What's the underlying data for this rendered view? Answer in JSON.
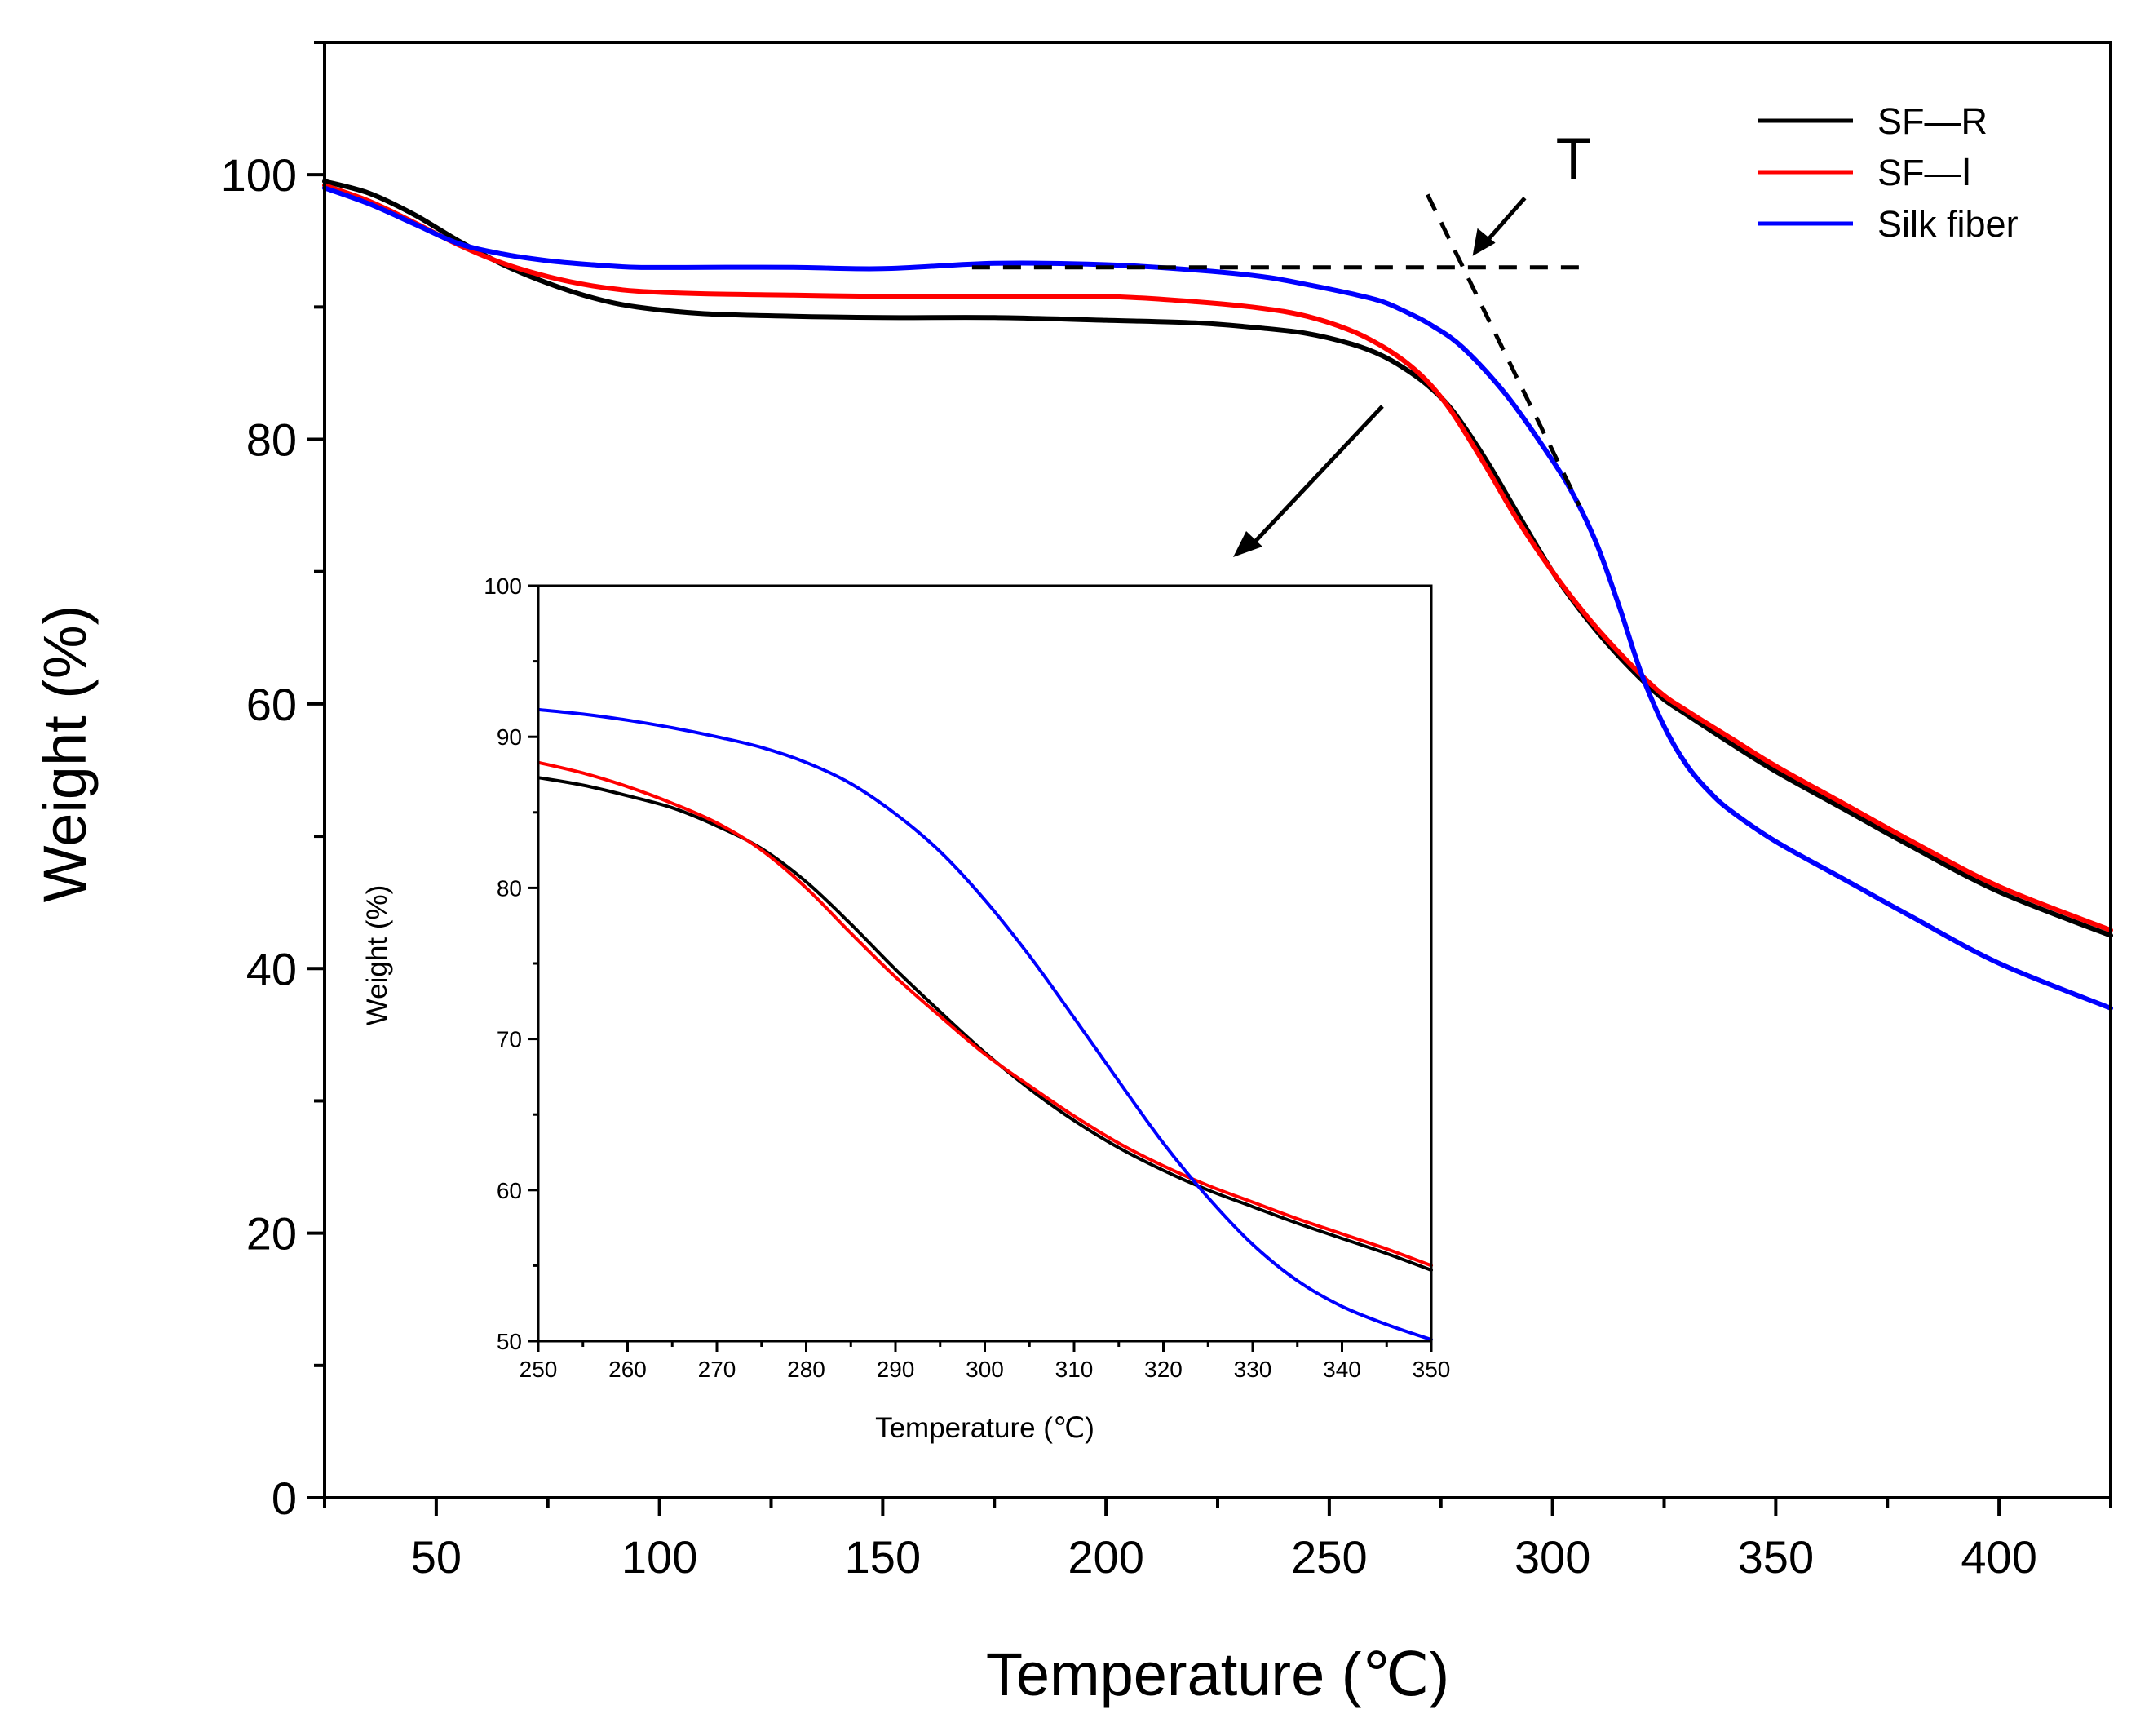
{
  "chart_data": {
    "type": "line",
    "main": {
      "xlabel": "Temperature (℃)",
      "ylabel": "Weight (%)",
      "xlim": [
        25,
        425
      ],
      "ylim": [
        0,
        110
      ],
      "xticks": [
        50,
        100,
        150,
        200,
        250,
        300,
        350,
        400
      ],
      "yticks": [
        0,
        20,
        40,
        60,
        80,
        100
      ],
      "xtick_labels": [
        "50",
        "100",
        "150",
        "200",
        "250",
        "300",
        "350",
        "400"
      ],
      "ytick_labels": [
        "0",
        "20",
        "40",
        "60",
        "80",
        "100"
      ],
      "series": [
        {
          "name": "SF—R",
          "color": "#000000",
          "x": [
            25,
            35,
            45,
            55,
            65,
            75,
            85,
            95,
            110,
            130,
            150,
            175,
            200,
            220,
            235,
            245,
            255,
            262,
            268,
            273,
            278,
            285,
            292,
            300,
            308,
            316,
            324,
            330,
            340,
            350,
            365,
            380,
            400,
            425
          ],
          "y": [
            99.5,
            98.6,
            97.0,
            95.0,
            93.2,
            91.8,
            90.7,
            90.0,
            89.5,
            89.3,
            89.2,
            89.2,
            89.0,
            88.8,
            88.4,
            88.0,
            87.2,
            86.3,
            85.1,
            83.8,
            82.0,
            78.5,
            74.5,
            70.0,
            66.3,
            63.2,
            60.6,
            59.2,
            57.0,
            54.9,
            52.1,
            49.3,
            45.8,
            42.5
          ]
        },
        {
          "name": "SF—Ⅰ",
          "color": "#ff0000",
          "x": [
            25,
            35,
            45,
            55,
            65,
            75,
            85,
            95,
            110,
            130,
            150,
            175,
            200,
            220,
            235,
            245,
            255,
            262,
            268,
            273,
            278,
            285,
            292,
            300,
            308,
            316,
            324,
            330,
            340,
            350,
            365,
            380,
            400,
            425
          ],
          "y": [
            99.2,
            98.0,
            96.4,
            94.7,
            93.3,
            92.3,
            91.6,
            91.2,
            91.0,
            90.9,
            90.8,
            90.8,
            90.8,
            90.4,
            89.9,
            89.3,
            88.2,
            87.0,
            85.6,
            84.0,
            81.8,
            78.0,
            74.0,
            70.0,
            66.5,
            63.5,
            60.9,
            59.5,
            57.4,
            55.3,
            52.5,
            49.7,
            46.2,
            42.9
          ]
        },
        {
          "name": "Silk fiber",
          "color": "#0000ff",
          "x": [
            25,
            35,
            45,
            55,
            65,
            75,
            85,
            95,
            110,
            130,
            150,
            175,
            200,
            220,
            235,
            245,
            255,
            262,
            268,
            273,
            280,
            290,
            300,
            305,
            310,
            315,
            320,
            325,
            330,
            335,
            340,
            350,
            365,
            380,
            400,
            425
          ],
          "y": [
            99.0,
            97.8,
            96.3,
            94.8,
            94.0,
            93.5,
            93.2,
            93.0,
            93.0,
            93.0,
            92.9,
            93.3,
            93.2,
            92.8,
            92.3,
            91.7,
            91.0,
            90.4,
            89.5,
            88.6,
            86.9,
            83.2,
            78.4,
            75.6,
            72.0,
            67.3,
            62.2,
            58.3,
            55.4,
            53.4,
            51.9,
            49.6,
            46.8,
            44.0,
            40.4,
            37.0
          ]
        }
      ],
      "legend": {
        "position": "top-right",
        "entries": [
          "SF—R",
          "SF—Ⅰ",
          "Silk fiber"
        ]
      },
      "annotations": {
        "onset_label": "T",
        "onset_temperature": 281,
        "onset_weight": 93,
        "baseline_weight": 93
      }
    },
    "inset": {
      "xlabel": "Temperature (℃)",
      "ylabel": "Weight (%)",
      "xlim": [
        250,
        350
      ],
      "ylim": [
        50,
        100
      ],
      "xticks": [
        250,
        260,
        270,
        280,
        290,
        300,
        310,
        320,
        330,
        340,
        350
      ],
      "yticks": [
        50,
        60,
        70,
        80,
        90,
        100
      ],
      "xtick_labels": [
        "250",
        "260",
        "270",
        "280",
        "290",
        "300",
        "310",
        "320",
        "330",
        "340",
        "350"
      ],
      "ytick_labels": [
        "50",
        "60",
        "70",
        "80",
        "90",
        "100"
      ],
      "series": [
        {
          "name": "SF—R",
          "color": "#000000",
          "x": [
            250,
            255,
            260,
            265,
            270,
            275,
            280,
            285,
            290,
            295,
            300,
            305,
            310,
            315,
            320,
            325,
            330,
            335,
            340,
            345,
            350
          ],
          "y": [
            87.3,
            86.8,
            86.1,
            85.3,
            84.1,
            82.6,
            80.4,
            77.6,
            74.6,
            71.8,
            69.1,
            66.7,
            64.6,
            62.8,
            61.3,
            60.0,
            58.9,
            57.8,
            56.8,
            55.8,
            54.7
          ]
        },
        {
          "name": "SF—Ⅰ",
          "color": "#ff0000",
          "x": [
            250,
            255,
            260,
            265,
            270,
            275,
            280,
            285,
            290,
            295,
            300,
            305,
            310,
            315,
            320,
            325,
            330,
            335,
            340,
            345,
            350
          ],
          "y": [
            88.3,
            87.6,
            86.7,
            85.6,
            84.3,
            82.5,
            80.0,
            77.0,
            74.1,
            71.5,
            69.0,
            66.9,
            64.9,
            63.1,
            61.6,
            60.3,
            59.2,
            58.1,
            57.1,
            56.1,
            55.0
          ]
        },
        {
          "name": "Silk fiber",
          "color": "#0000ff",
          "x": [
            250,
            255,
            260,
            265,
            270,
            275,
            280,
            285,
            290,
            295,
            300,
            305,
            310,
            315,
            320,
            325,
            330,
            335,
            340,
            345,
            350
          ],
          "y": [
            91.8,
            91.5,
            91.1,
            90.6,
            90.0,
            89.3,
            88.3,
            86.9,
            84.9,
            82.4,
            79.2,
            75.5,
            71.4,
            67.2,
            63.1,
            59.5,
            56.4,
            54.0,
            52.3,
            51.1,
            50.1
          ]
        }
      ]
    }
  }
}
